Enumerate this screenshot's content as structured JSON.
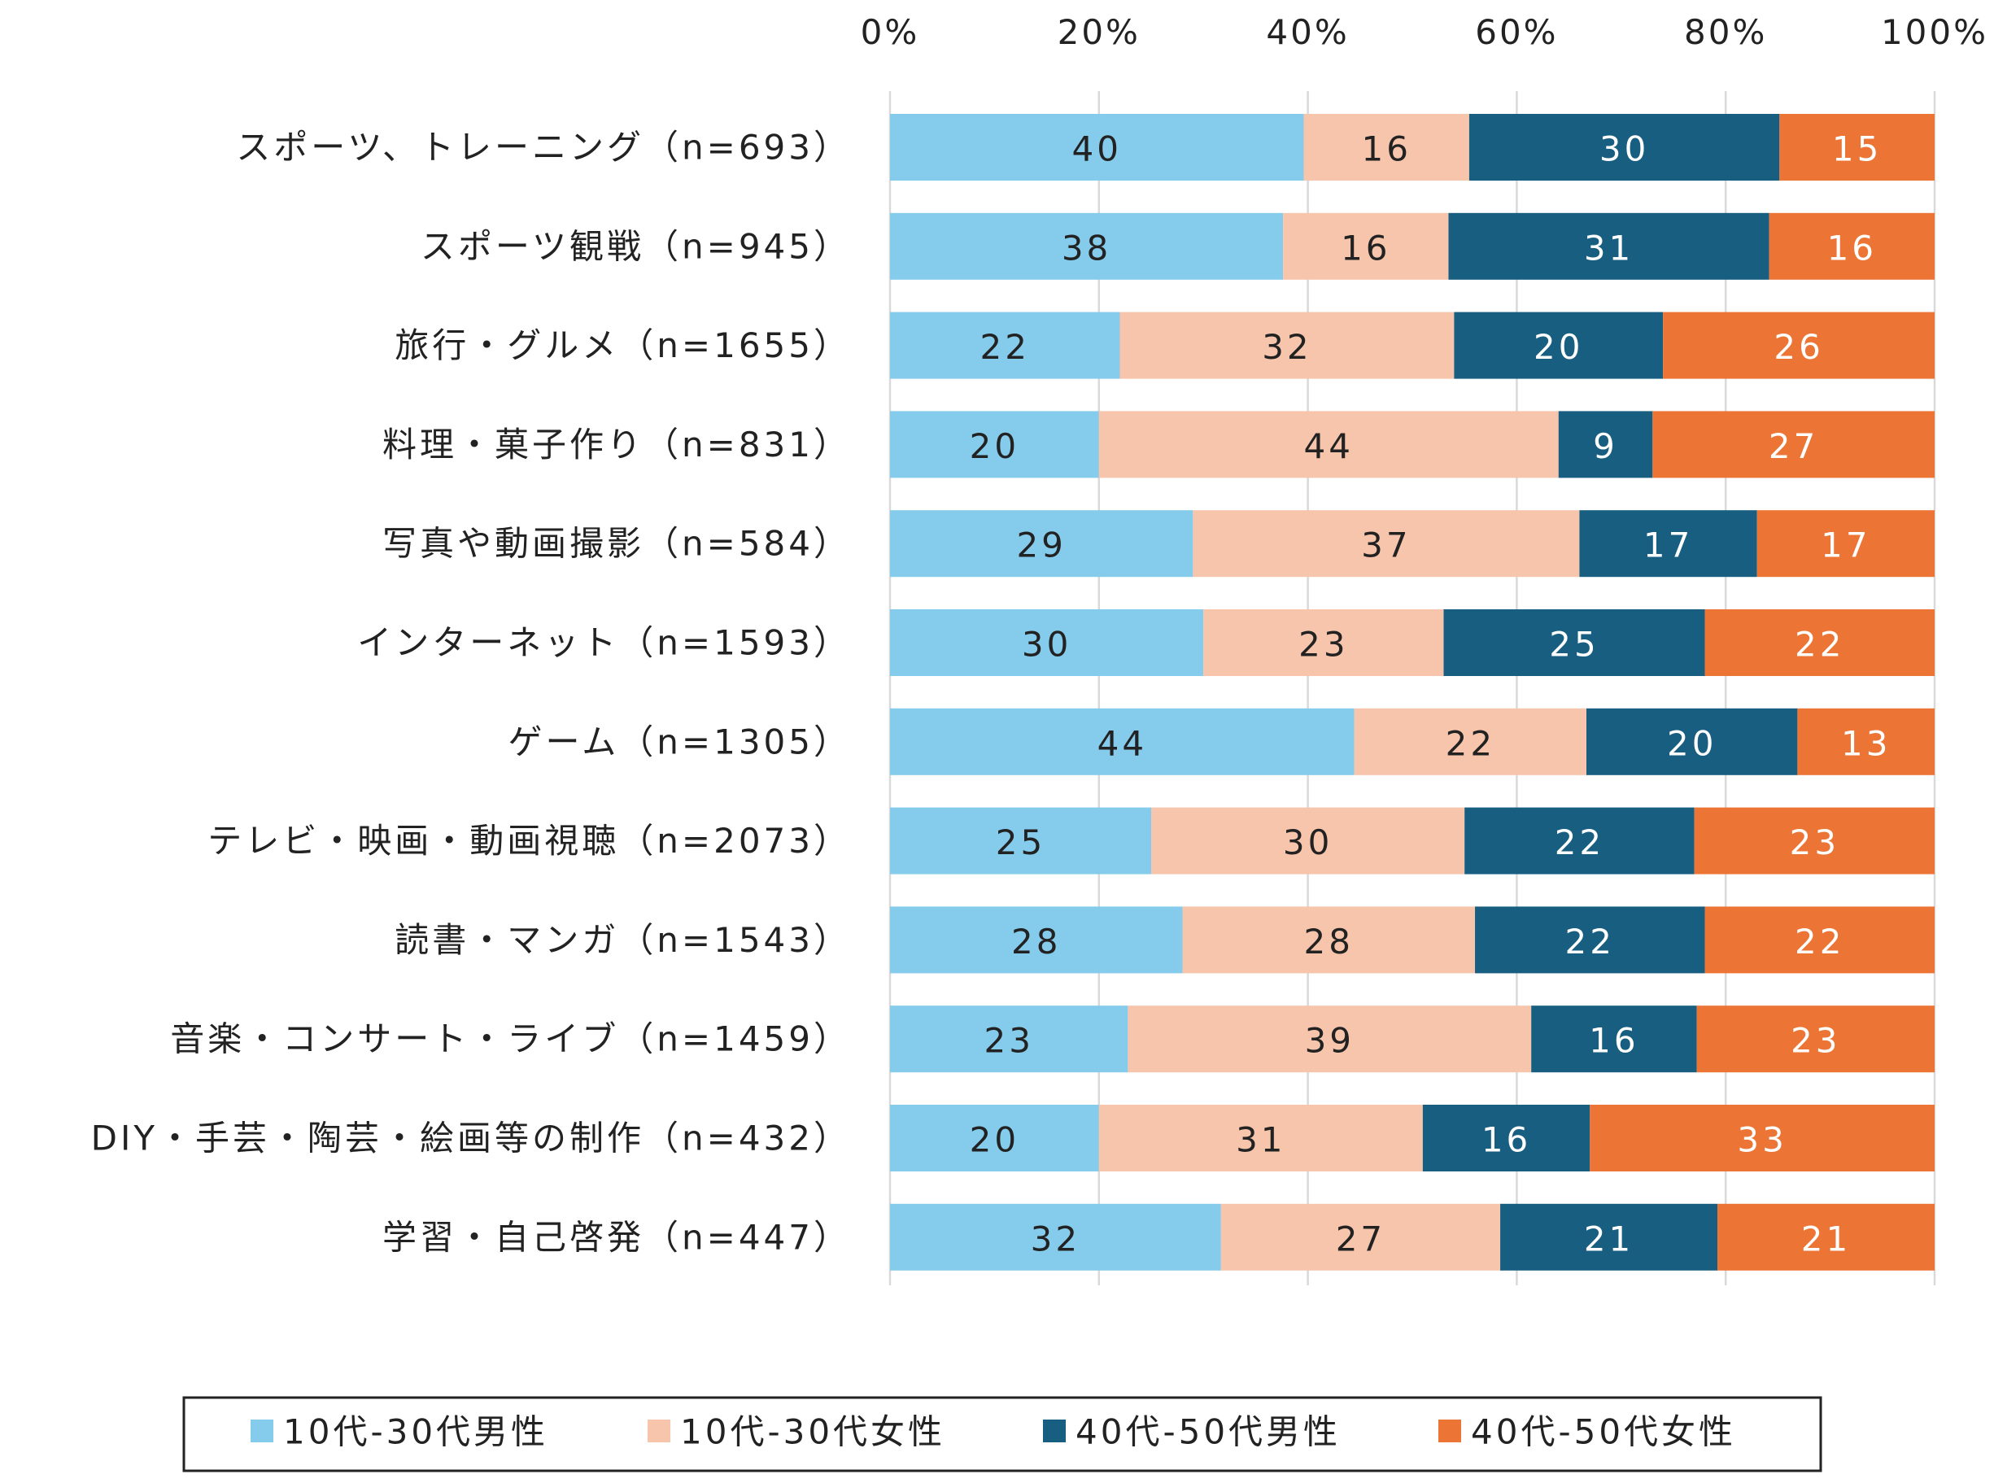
{
  "chart_data": {
    "type": "bar",
    "orientation": "horizontal",
    "stacked": true,
    "percent_stacked": true,
    "title": "",
    "xlabel": "",
    "ylabel": "",
    "xlim": [
      0,
      100
    ],
    "x_ticks": [
      "0%",
      "20%",
      "40%",
      "60%",
      "80%",
      "100%"
    ],
    "x_tick_values": [
      0,
      20,
      40,
      60,
      80,
      100
    ],
    "grid": "vertical",
    "legend_position": "bottom",
    "categories": [
      "スポーツ、トレーニング（n=693）",
      "スポーツ観戦（n=945）",
      "旅行・グルメ（n=1655）",
      "料理・菓子作り（n=831）",
      "写真や動画撮影（n=584）",
      "インターネット（n=1593）",
      "ゲーム（n=1305）",
      "テレビ・映画・動画視聴（n=2073）",
      "読書・マンガ（n=1543）",
      "音楽・コンサート・ライブ（n=1459）",
      "DIY・手芸・陶芸・絵画等の制作（n=432）",
      "学習・自己啓発（n=447）"
    ],
    "series": [
      {
        "name": "10代-30代男性",
        "color": "#85cbeb",
        "label_color": "#222222",
        "values": [
          40,
          38,
          22,
          20,
          29,
          30,
          44,
          25,
          28,
          23,
          20,
          32
        ],
        "labels": [
          "40",
          "38",
          "22",
          "20",
          "29",
          "30",
          "44",
          "25",
          "28",
          "23",
          "20",
          "32"
        ]
      },
      {
        "name": "10代-30代女性",
        "color": "#f6c5ab",
        "label_color": "#222222",
        "values": [
          16,
          16,
          32,
          44,
          37,
          23,
          22,
          30,
          28,
          39,
          31,
          27
        ],
        "labels": [
          "16",
          "16",
          "32",
          "44",
          "37",
          "23",
          "22",
          "30",
          "28",
          "39",
          "31",
          "27"
        ]
      },
      {
        "name": "40代-50代男性",
        "color": "#175e80",
        "label_color": "#ffffff",
        "values": [
          30,
          31,
          20,
          9,
          17,
          25,
          20,
          22,
          22,
          16,
          16,
          21
        ],
        "labels": [
          "30",
          "31",
          "20",
          "9",
          "17",
          "25",
          "20",
          "22",
          "22",
          "16",
          "16",
          "21"
        ]
      },
      {
        "name": "40代-50代女性",
        "color": "#ec7536",
        "label_color": "#ffffff",
        "values": [
          15,
          16,
          26,
          27,
          17,
          22,
          13,
          23,
          22,
          23,
          33,
          21
        ],
        "labels": [
          "15",
          "16",
          "26",
          "27",
          "17",
          "22",
          "13",
          "23",
          "22",
          "23",
          "33",
          "21"
        ]
      }
    ]
  }
}
